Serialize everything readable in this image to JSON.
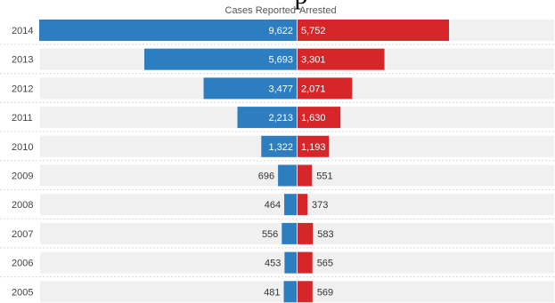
{
  "chart_data": {
    "type": "bar",
    "title": "",
    "cut_title_fragment": "p",
    "orientation": "horizontal-diverging",
    "categories": [
      "2014",
      "2013",
      "2012",
      "2011",
      "2010",
      "2009",
      "2008",
      "2007",
      "2006",
      "2005"
    ],
    "series": [
      {
        "name": "Cases Reported",
        "color": "#2d7ec0",
        "values": [
          9622,
          5693,
          3477,
          2213,
          1322,
          696,
          464,
          556,
          453,
          481
        ],
        "labels": [
          "9,622",
          "5,693",
          "3,477",
          "2,213",
          "1,322",
          "696",
          "464",
          "556",
          "453",
          "481"
        ]
      },
      {
        "name": "Arrested",
        "color": "#d7262a",
        "values": [
          5752,
          3301,
          2071,
          1630,
          1193,
          551,
          373,
          583,
          565,
          569
        ],
        "labels": [
          "5,752",
          "3,301",
          "2,071",
          "1,630",
          "1,193",
          "551",
          "373",
          "583",
          "565",
          "569"
        ]
      }
    ],
    "row_background": "#f0f0f0",
    "grid": false,
    "legend": "top-center"
  }
}
